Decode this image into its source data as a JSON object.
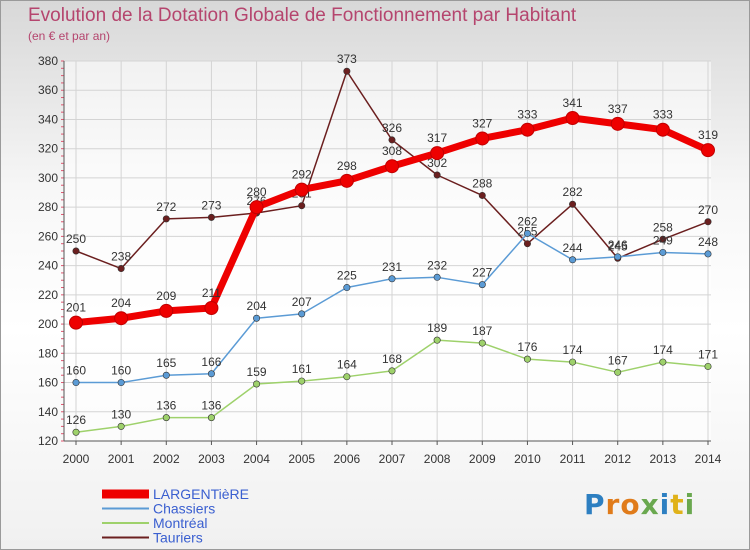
{
  "title": "Evolution de la Dotation Globale de Fonctionnement par Habitant",
  "subtitle": "(en € et par an)",
  "logo": {
    "letters": [
      "P",
      "r",
      "o",
      "x",
      "i",
      "t",
      "i"
    ],
    "colors": [
      "#2d7fc1",
      "#e07b1a",
      "#e07b1a",
      "#6aa84f",
      "#2d7fc1",
      "#e0b21a",
      "#6aa84f"
    ]
  },
  "chart_data": {
    "type": "line",
    "title": "Evolution de la Dotation Globale de Fonctionnement par Habitant",
    "ylabel": "(en € et par an)",
    "x": [
      "2000",
      "2001",
      "2002",
      "2003",
      "2004",
      "2005",
      "2006",
      "2007",
      "2008",
      "2009",
      "2010",
      "2011",
      "2012",
      "2013",
      "2014"
    ],
    "ylim": [
      120,
      380
    ],
    "yticks": [
      120,
      140,
      160,
      180,
      200,
      220,
      240,
      260,
      280,
      300,
      320,
      340,
      360,
      380
    ],
    "series": [
      {
        "name": "Tauriers",
        "color": "#6b1f1f",
        "values": [
          250,
          238,
          272,
          273,
          276,
          281,
          373,
          326,
          302,
          288,
          255,
          282,
          245,
          258,
          270
        ],
        "labels": [
          "250",
          "238",
          "272",
          "273",
          "276",
          "281",
          "373",
          "326",
          "302",
          "288",
          "255",
          "282",
          "245",
          "258",
          "270"
        ]
      },
      {
        "name": "Chassiers",
        "color": "#5b9bd5",
        "values": [
          160,
          160,
          165,
          166,
          204,
          207,
          225,
          231,
          232,
          227,
          262,
          244,
          246,
          249,
          248
        ],
        "labels": [
          "160",
          "160",
          "165",
          "166",
          "204",
          "207",
          "225",
          "231",
          "232",
          "227",
          "262",
          "244",
          "246",
          "249",
          "248"
        ]
      },
      {
        "name": "Montréal",
        "color": "#9ed16b",
        "values": [
          126,
          130,
          136,
          136,
          159,
          161,
          164,
          168,
          189,
          187,
          176,
          174,
          167,
          174,
          171
        ],
        "labels": [
          "126",
          "130",
          "136",
          "136",
          "159",
          "161",
          "164",
          "168",
          "189",
          "187",
          "176",
          "174",
          "167",
          "174",
          "171"
        ]
      },
      {
        "name": "LARGENTièRE",
        "color": "#ee0000",
        "values": [
          201,
          204,
          209,
          211,
          280,
          292,
          298,
          308,
          317,
          327,
          333,
          341,
          337,
          333,
          319
        ],
        "labels": [
          "201",
          "204",
          "209",
          "211",
          "280",
          "292",
          "298",
          "308",
          "317",
          "327",
          "333",
          "341",
          "337",
          "333",
          "319"
        ]
      }
    ]
  },
  "legend": [
    {
      "name": "LARGENTièRE",
      "color": "#ee0000",
      "text_color": "#3a5fd0"
    },
    {
      "name": "Chassiers",
      "color": "#5b9bd5",
      "text_color": "#3a5fd0"
    },
    {
      "name": "Montréal",
      "color": "#9ed16b",
      "text_color": "#3a5fd0"
    },
    {
      "name": "Tauriers",
      "color": "#6b1f1f",
      "text_color": "#3a5fd0"
    }
  ]
}
